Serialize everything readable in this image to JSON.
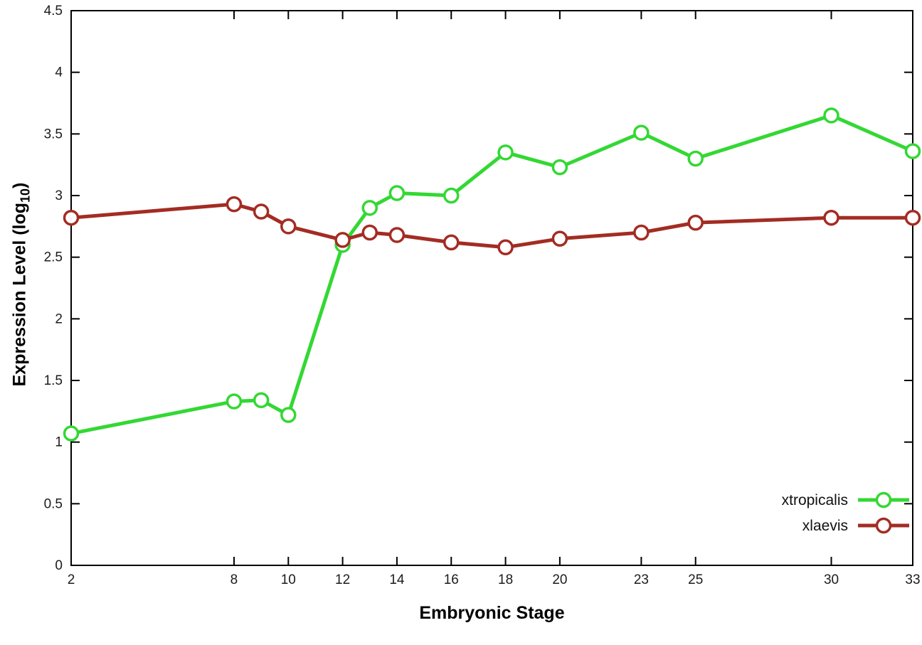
{
  "chart_data": {
    "type": "line",
    "title": "",
    "xlabel": "Embryonic Stage",
    "ylabel_prefix": "Expression Level (log",
    "ylabel_sub": "10",
    "ylabel_suffix": ")",
    "xlim": [
      2,
      33
    ],
    "ylim": [
      0,
      4.5
    ],
    "xticks": [
      2,
      8,
      10,
      12,
      14,
      16,
      18,
      20,
      23,
      25,
      30,
      33
    ],
    "yticks": [
      0,
      0.5,
      1,
      1.5,
      2,
      2.5,
      3,
      3.5,
      4,
      4.5
    ],
    "grid": false,
    "legend_position": "bottom-right-inside",
    "background": "#ffffff",
    "border_color": "#000000",
    "x": [
      2,
      8,
      9,
      10,
      12,
      13,
      14,
      16,
      18,
      20,
      23,
      25,
      30,
      33
    ],
    "series": [
      {
        "name": "xtropicalis",
        "color": "#33d833",
        "values": [
          1.07,
          1.33,
          1.34,
          1.22,
          2.6,
          2.9,
          3.02,
          3.0,
          3.35,
          3.23,
          3.51,
          3.3,
          3.65,
          3.36
        ]
      },
      {
        "name": "xlaevis",
        "color": "#a32c23",
        "values": [
          2.82,
          2.93,
          2.87,
          2.75,
          2.64,
          2.7,
          2.68,
          2.62,
          2.58,
          2.65,
          2.7,
          2.78,
          2.82,
          2.82
        ]
      }
    ]
  }
}
